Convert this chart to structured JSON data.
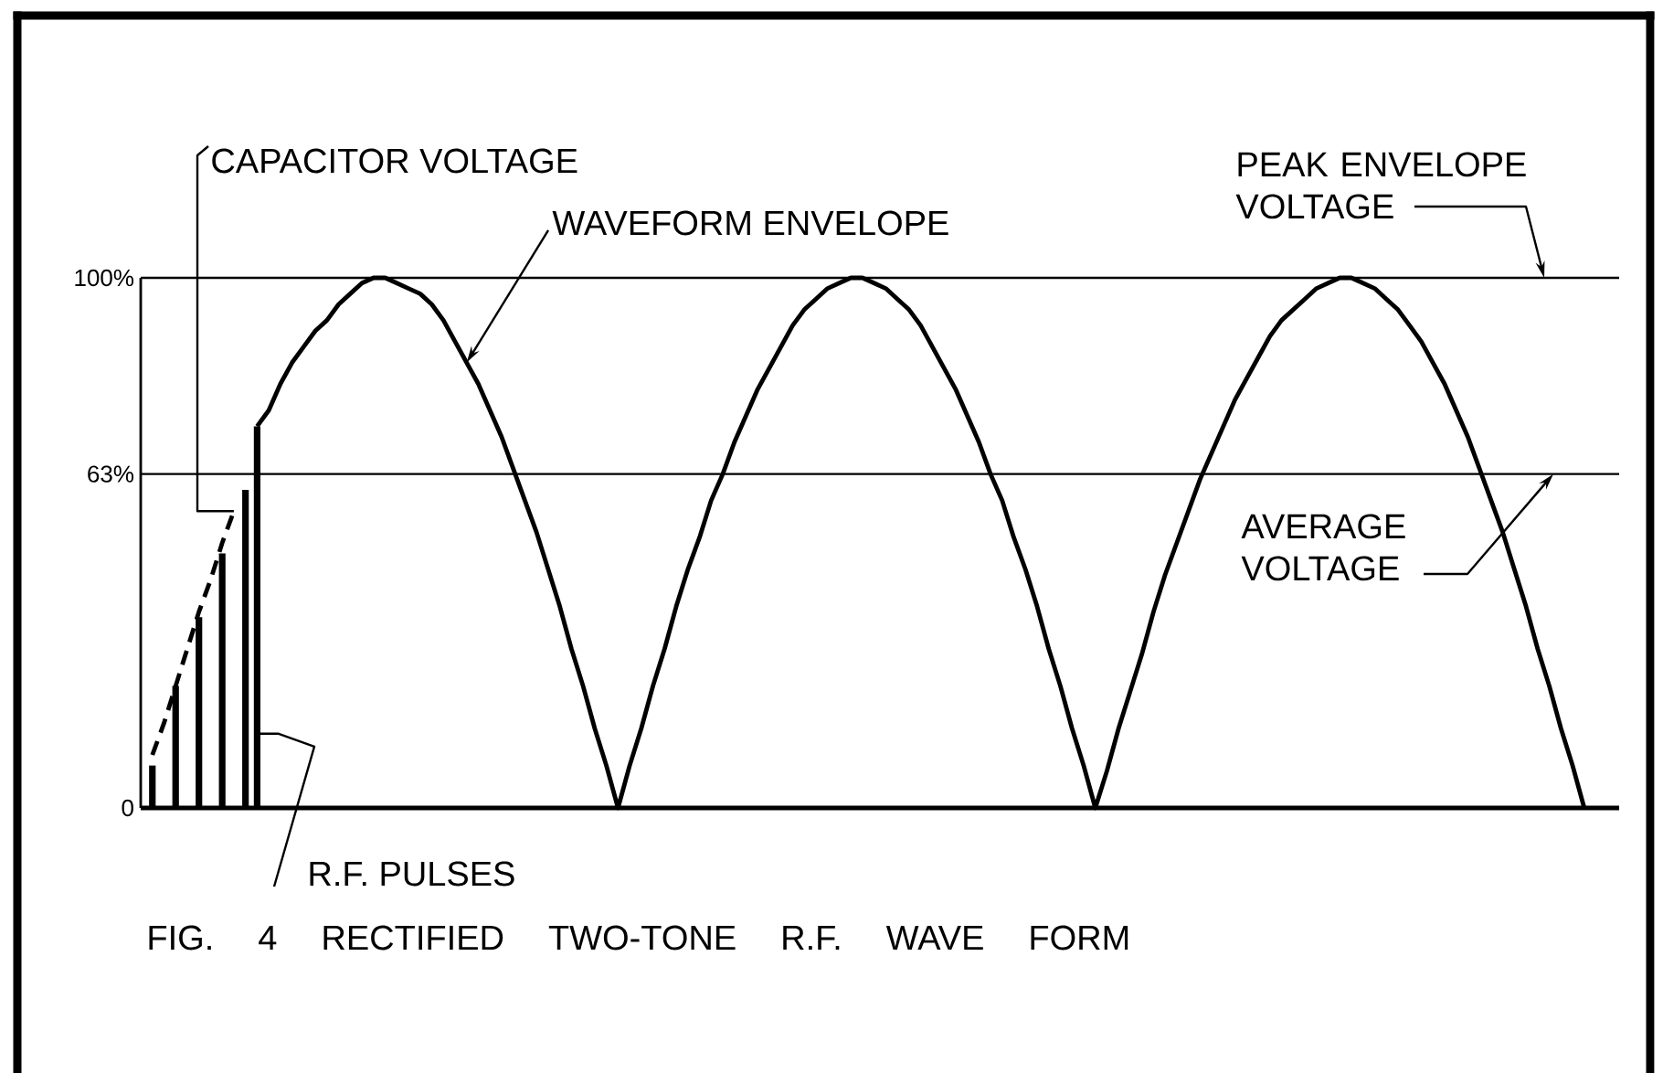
{
  "chart_data": {
    "type": "line",
    "title": "FIG. 4 RECTIFIED TWO-TONE R.F. WAVE FORM",
    "categories": [
      null,
      null,
      null,
      null,
      null,
      null,
      null,
      null,
      null,
      null,
      null,
      null,
      null,
      null,
      null,
      null,
      null,
      null,
      null,
      null,
      null,
      null,
      null,
      null,
      null,
      null,
      null,
      null,
      null,
      null,
      null,
      null,
      null,
      null,
      null,
      null,
      null,
      null,
      null,
      null,
      null,
      null,
      null,
      null,
      null,
      null,
      null,
      null,
      null,
      null,
      null,
      null,
      null,
      null,
      null,
      null,
      null,
      null,
      null,
      null,
      null,
      null,
      null,
      null,
      null,
      null,
      null,
      null,
      null,
      null,
      null,
      null,
      null,
      null,
      null,
      null,
      null,
      null,
      null,
      null,
      null,
      null,
      null,
      null,
      null,
      null,
      null,
      null,
      null,
      null,
      null,
      null,
      null,
      null,
      null,
      null,
      null,
      null,
      null,
      null,
      null,
      null,
      null,
      null,
      null,
      null,
      null,
      null,
      null,
      null,
      null,
      null,
      null,
      null,
      null,
      null,
      null,
      null,
      null,
      null,
      null,
      null,
      null,
      null,
      null,
      null,
      null,
      null
    ],
    "series": [
      {
        "name": "R.F. PULSES",
        "type": "bar",
        "color": "#000000",
        "values": [
          null,
          8,
          null,
          23,
          null,
          36,
          null,
          48,
          null,
          60,
          72,
          null,
          null,
          null,
          null,
          null,
          null,
          null,
          null,
          null,
          null,
          null,
          null,
          null,
          null,
          null,
          null,
          null,
          null,
          null,
          null,
          null,
          null,
          null,
          null,
          null,
          null,
          null,
          null,
          null,
          null,
          null,
          null,
          null,
          null,
          null,
          null,
          null,
          null,
          null,
          null,
          null,
          null,
          null,
          null,
          null,
          null,
          null,
          null,
          null,
          null,
          null,
          null,
          null,
          null,
          null,
          null,
          null,
          null,
          null,
          null,
          null,
          null,
          null,
          null,
          null,
          null,
          null,
          null,
          null,
          null,
          null,
          null,
          null,
          null,
          null,
          null,
          null,
          null,
          null,
          null,
          null,
          null,
          null,
          null,
          null,
          null,
          null,
          null,
          null,
          null,
          null,
          null,
          null,
          null,
          null,
          null,
          null,
          null,
          null,
          null,
          null,
          null,
          null,
          null,
          null,
          null,
          null,
          null,
          null,
          null,
          null,
          null,
          null,
          null,
          null,
          null,
          null
        ]
      },
      {
        "name": "CAPACITOR VOLTAGE",
        "color": "#000000",
        "line_style": "dashed",
        "values": [
          null,
          10,
          16,
          23,
          30,
          37,
          43,
          50,
          56,
          null,
          null,
          null,
          null,
          null,
          null,
          null,
          null,
          null,
          null,
          null,
          null,
          null,
          null,
          null,
          null,
          null,
          null,
          null,
          null,
          null,
          null,
          null,
          null,
          null,
          null,
          null,
          null,
          null,
          null,
          null,
          null,
          null,
          null,
          null,
          null,
          null,
          null,
          null,
          null,
          null,
          null,
          null,
          null,
          null,
          null,
          null,
          null,
          null,
          null,
          null,
          null,
          null,
          null,
          null,
          null,
          null,
          null,
          null,
          null,
          null,
          null,
          null,
          null,
          null,
          null,
          null,
          null,
          null,
          null,
          null,
          null,
          null,
          null,
          null,
          null,
          null,
          null,
          null,
          null,
          null,
          null,
          null,
          null,
          null,
          null,
          null,
          null,
          null,
          null,
          null,
          null,
          null,
          null,
          null,
          null,
          null,
          null,
          null,
          null,
          null,
          null,
          null,
          null,
          null,
          null,
          null,
          null,
          null,
          null,
          null,
          null,
          null,
          null,
          null,
          null,
          null,
          null,
          null
        ]
      },
      {
        "name": "WAVEFORM ENVELOPE",
        "color": "#000000",
        "values": [
          null,
          null,
          null,
          null,
          null,
          null,
          null,
          null,
          null,
          null,
          72,
          75,
          80,
          84,
          87,
          90,
          92,
          95,
          97,
          99,
          100,
          100,
          99,
          98,
          97,
          95,
          92,
          88,
          84,
          80,
          75,
          70,
          64,
          58,
          52,
          45,
          38,
          30,
          23,
          15,
          8,
          0,
          8,
          15,
          23,
          30,
          38,
          45,
          51,
          58,
          63,
          69,
          74,
          79,
          83,
          87,
          91,
          94,
          96,
          98,
          99,
          100,
          100,
          99,
          98,
          96,
          94,
          91,
          87,
          83,
          79,
          74,
          69,
          63,
          58,
          51,
          45,
          38,
          30,
          23,
          15,
          8,
          0,
          7,
          15,
          22,
          29,
          37,
          44,
          50,
          56,
          62,
          67,
          72,
          77,
          81,
          85,
          89,
          92,
          94,
          96,
          98,
          99,
          100,
          100,
          99,
          98,
          96,
          94,
          91,
          88,
          84,
          80,
          75,
          70,
          64,
          58,
          52,
          45,
          38,
          30,
          23,
          15,
          8,
          0,
          null,
          null,
          null
        ]
      }
    ],
    "ylim": [
      0,
      100
    ],
    "yticks": [
      0,
      {
        "value": 63,
        "label": "63%"
      },
      {
        "value": 100,
        "label": "100%"
      }
    ],
    "tick_labels": "y",
    "ref_lines": [
      {
        "axis": "y",
        "value": 63,
        "label": "AVERAGE VOLTAGE"
      }
    ],
    "annotations": [
      "PEAK ENVELOPE VOLTAGE"
    ]
  }
}
